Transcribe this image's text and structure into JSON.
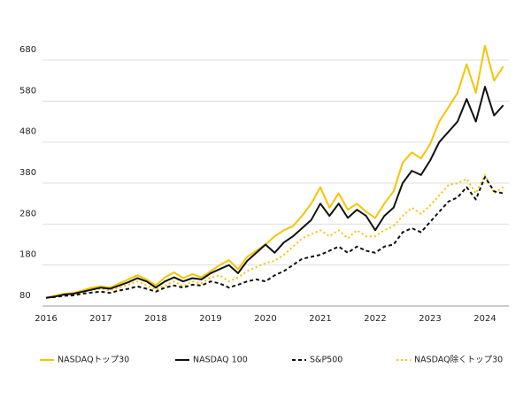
{
  "chart_data": {
    "type": "line",
    "categories": [
      "2016",
      null,
      null,
      null,
      null,
      null,
      "2017",
      null,
      null,
      null,
      null,
      null,
      "2018",
      null,
      null,
      null,
      null,
      null,
      "2019",
      null,
      null,
      null,
      null,
      null,
      "2020",
      null,
      null,
      null,
      null,
      null,
      "2021",
      null,
      null,
      null,
      null,
      null,
      "2022",
      null,
      null,
      null,
      null,
      null,
      "2023",
      null,
      null,
      null,
      null,
      null,
      "2024",
      null,
      null
    ],
    "ylim": [
      80,
      720
    ],
    "yticks": [
      80,
      180,
      280,
      380,
      480,
      580,
      680
    ],
    "grid": true,
    "series": [
      {
        "name": "NASDAQトップ30",
        "color": "#f5c400",
        "dash": "solid",
        "values": [
          100,
          105,
          110,
          112,
          118,
          125,
          128,
          125,
          135,
          145,
          155,
          145,
          130,
          150,
          162,
          148,
          158,
          150,
          165,
          180,
          192,
          170,
          200,
          215,
          230,
          250,
          265,
          275,
          300,
          330,
          370,
          320,
          355,
          315,
          330,
          310,
          295,
          330,
          360,
          430,
          455,
          440,
          475,
          530,
          565,
          600,
          670,
          600,
          715,
          630,
          665
        ]
      },
      {
        "name": "NASDAQ 100",
        "color": "#111111",
        "dash": "solid",
        "values": [
          100,
          103,
          108,
          110,
          115,
          120,
          125,
          122,
          130,
          138,
          148,
          140,
          125,
          140,
          150,
          140,
          148,
          145,
          160,
          170,
          180,
          160,
          190,
          210,
          230,
          210,
          235,
          250,
          270,
          290,
          330,
          300,
          330,
          295,
          315,
          300,
          265,
          300,
          320,
          380,
          410,
          400,
          435,
          480,
          505,
          530,
          585,
          530,
          615,
          545,
          570
        ]
      },
      {
        "name": "S&P500",
        "color": "#111111",
        "dash": "dashed",
        "values": [
          100,
          102,
          105,
          106,
          110,
          113,
          115,
          112,
          118,
          122,
          128,
          122,
          115,
          125,
          130,
          125,
          132,
          130,
          140,
          135,
          125,
          132,
          140,
          145,
          140,
          155,
          165,
          180,
          195,
          200,
          205,
          215,
          225,
          210,
          225,
          215,
          210,
          225,
          230,
          260,
          270,
          260,
          285,
          310,
          335,
          345,
          370,
          340,
          395,
          360,
          355
        ]
      },
      {
        "name": "NASDAQ除くトップ30",
        "color": "#f5c400",
        "dash": "dotted",
        "values": [
          100,
          103,
          108,
          110,
          115,
          120,
          122,
          118,
          125,
          132,
          140,
          130,
          120,
          130,
          140,
          128,
          140,
          135,
          150,
          155,
          140,
          150,
          165,
          175,
          185,
          190,
          205,
          225,
          245,
          255,
          265,
          250,
          265,
          245,
          265,
          250,
          250,
          265,
          275,
          300,
          320,
          305,
          325,
          350,
          375,
          380,
          390,
          355,
          400,
          355,
          370
        ]
      }
    ]
  }
}
